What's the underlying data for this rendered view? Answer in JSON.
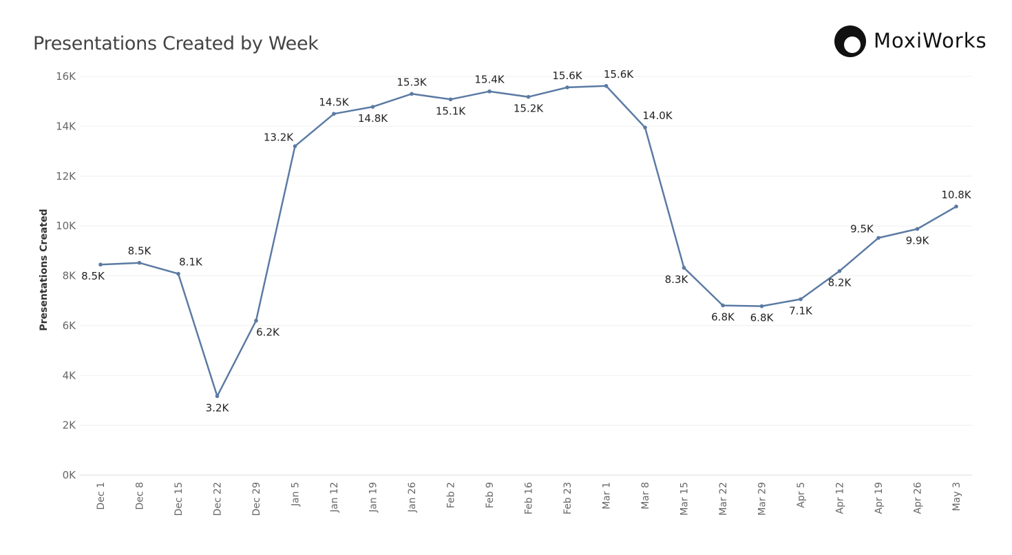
{
  "brand": {
    "name": "MoxiWorks",
    "logo_icon": "moxiworks-logo-icon"
  },
  "chart_data": {
    "type": "line",
    "title": "Presentations Created by Week",
    "xlabel": "",
    "ylabel": "Presentations Created",
    "ylim": [
      0,
      16000
    ],
    "yticks": [
      0,
      2000,
      4000,
      6000,
      8000,
      10000,
      12000,
      14000,
      16000
    ],
    "ytick_labels": [
      "0K",
      "2K",
      "4K",
      "6K",
      "8K",
      "10K",
      "12K",
      "14K",
      "16K"
    ],
    "grid": true,
    "line_color": "#5b7aa3",
    "categories": [
      "Dec 1",
      "Dec 8",
      "Dec 15",
      "Dec 22",
      "Dec 29",
      "Jan 5",
      "Jan 12",
      "Jan 19",
      "Jan 26",
      "Feb 2",
      "Feb 9",
      "Feb 16",
      "Feb 23",
      "Mar 1",
      "Mar 8",
      "Mar 15",
      "Mar 22",
      "Mar 29",
      "Apr 5",
      "Apr 12",
      "Apr 19",
      "Apr 26",
      "May 3"
    ],
    "values": [
      8450,
      8520,
      8080,
      3170,
      6200,
      13200,
      14500,
      14780,
      15300,
      15080,
      15400,
      15180,
      15560,
      15620,
      13950,
      8320,
      6810,
      6780,
      7060,
      8190,
      9520,
      9880,
      10780
    ],
    "data_labels": [
      "8.5K",
      "8.5K",
      "8.1K",
      "3.2K",
      "6.2K",
      "13.2K",
      "14.5K",
      "14.8K",
      "15.3K",
      "15.1K",
      "15.4K",
      "15.2K",
      "15.6K",
      "15.6K",
      "14.0K",
      "8.3K",
      "6.8K",
      "6.8K",
      "7.1K",
      "8.2K",
      "9.5K",
      "9.9K",
      "10.8K"
    ],
    "label_positions": [
      "below-left",
      "above",
      "above-right",
      "below",
      "below-right",
      "above-left",
      "above",
      "below",
      "above",
      "below",
      "above",
      "below",
      "above",
      "above-right",
      "above-right",
      "below-left",
      "below",
      "below",
      "below",
      "below",
      "above-left",
      "below",
      "above"
    ]
  }
}
